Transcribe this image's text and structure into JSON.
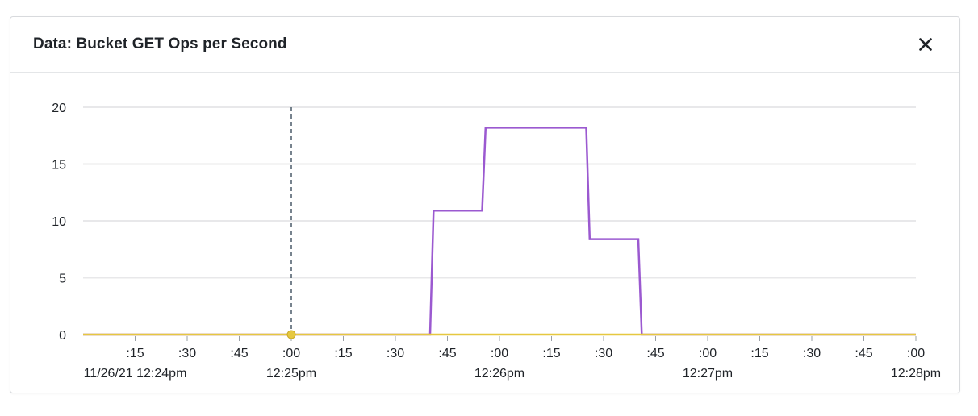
{
  "panel": {
    "title": "Data: Bucket GET Ops per Second",
    "close_icon": "close-icon"
  },
  "colors": {
    "series_purple": "#9b59d0",
    "series_yellow": "#e6c840",
    "gridline": "#e8e8ea",
    "crosshair": "#4a5a68"
  },
  "chart_data": {
    "type": "line",
    "ylim": [
      0,
      20
    ],
    "yticks": [
      0,
      5,
      10,
      15,
      20
    ],
    "xlim": [
      0,
      240
    ],
    "x_tick_values": [
      15,
      30,
      45,
      60,
      75,
      90,
      105,
      120,
      135,
      150,
      165,
      180,
      195,
      210,
      225,
      240
    ],
    "x_tick_labels": [
      ":15",
      ":30",
      ":45",
      ":00",
      ":15",
      ":30",
      ":45",
      ":00",
      ":15",
      ":30",
      ":45",
      ":00",
      ":15",
      ":30",
      ":45",
      ":00"
    ],
    "x_date_labels": [
      {
        "x": 15,
        "label": "11/26/21 12:24pm"
      },
      {
        "x": 60,
        "label": "12:25pm"
      },
      {
        "x": 120,
        "label": "12:26pm"
      },
      {
        "x": 180,
        "label": "12:27pm"
      },
      {
        "x": 240,
        "label": "12:28pm"
      }
    ],
    "crosshair_x": 60,
    "series": [
      {
        "color": "#9b59d0",
        "points": [
          [
            0,
            0
          ],
          [
            100,
            0
          ],
          [
            101,
            10.9
          ],
          [
            115,
            10.9
          ],
          [
            116,
            18.2
          ],
          [
            145,
            18.2
          ],
          [
            146,
            8.4
          ],
          [
            160,
            8.4
          ],
          [
            161,
            0
          ],
          [
            240,
            0
          ]
        ]
      },
      {
        "color": "#e6c840",
        "points": [
          [
            0,
            0
          ],
          [
            240,
            0
          ]
        ]
      }
    ],
    "highlight_point": {
      "x": 60,
      "y": 0
    }
  }
}
